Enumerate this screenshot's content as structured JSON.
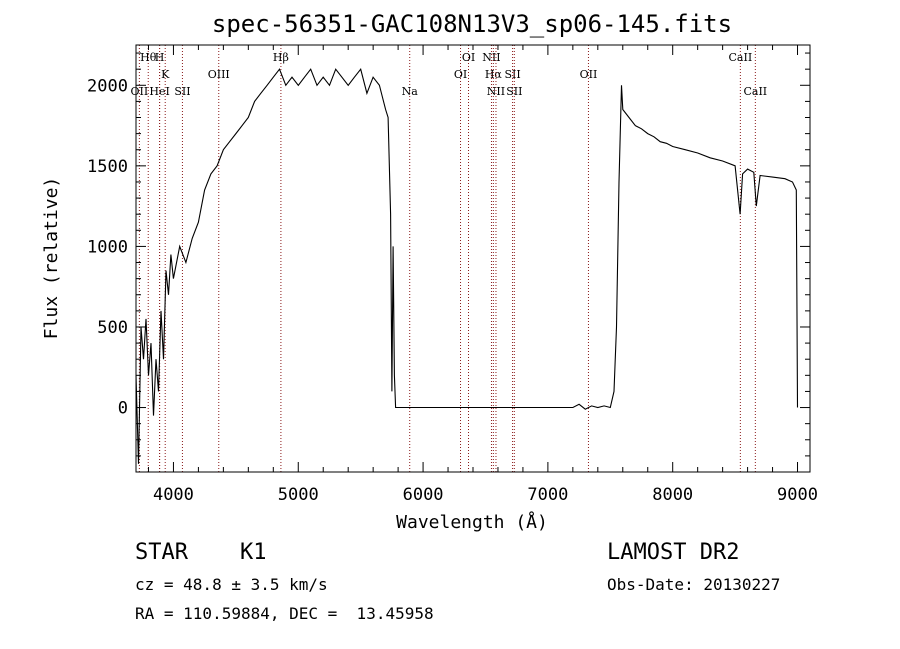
{
  "chart_data": {
    "type": "line",
    "title": "spec-56351-GAC108N13V3_sp06-145.fits",
    "xlabel": "Wavelength (Å)",
    "ylabel": "Flux (relative)",
    "xlim": [
      3700,
      9100
    ],
    "ylim": [
      -400,
      2250
    ],
    "xticks": [
      4000,
      5000,
      6000,
      7000,
      8000,
      9000
    ],
    "yticks": [
      0,
      500,
      1000,
      1500,
      2000
    ],
    "grid": false,
    "legend": "none",
    "series": [
      {
        "x": [
          3700,
          3720,
          3740,
          3760,
          3780,
          3800,
          3820,
          3840,
          3860,
          3880,
          3900,
          3920,
          3940,
          3960,
          3980,
          4000,
          4050,
          4100,
          4150,
          4200,
          4250,
          4300,
          4350,
          4400,
          4450,
          4500,
          4550,
          4600,
          4650,
          4700,
          4750,
          4800,
          4850,
          4900,
          4950,
          5000,
          5050,
          5100,
          5150,
          5200,
          5250,
          5300,
          5350,
          5400,
          5450,
          5500,
          5550,
          5600,
          5650,
          5700,
          5720,
          5740,
          5750,
          5760,
          5770,
          5780,
          5800,
          6000,
          6200,
          6400,
          6600,
          6800,
          7000,
          7200,
          7250,
          7300,
          7350,
          7400,
          7450,
          7500,
          7530,
          7550,
          7570,
          7590,
          7600,
          7650,
          7700,
          7750,
          7800,
          7850,
          7900,
          7950,
          8000,
          8100,
          8200,
          8300,
          8400,
          8500,
          8540,
          8560,
          8600,
          8650,
          8670,
          8700,
          8800,
          8900,
          8960,
          8990,
          9000
        ],
        "y": [
          200,
          -350,
          500,
          300,
          550,
          200,
          400,
          -50,
          300,
          100,
          600,
          300,
          850,
          700,
          950,
          800,
          1000,
          900,
          1050,
          1150,
          1350,
          1450,
          1500,
          1600,
          1650,
          1700,
          1750,
          1800,
          1900,
          1950,
          2000,
          2050,
          2100,
          2000,
          2050,
          2000,
          2050,
          2100,
          2000,
          2050,
          2000,
          2100,
          2050,
          2000,
          2050,
          2100,
          1950,
          2050,
          2000,
          1850,
          1800,
          1200,
          100,
          1000,
          200,
          0,
          0,
          0,
          0,
          0,
          0,
          0,
          0,
          0,
          20,
          -10,
          10,
          0,
          10,
          0,
          100,
          500,
          1400,
          2000,
          1850,
          1800,
          1750,
          1730,
          1700,
          1680,
          1650,
          1640,
          1620,
          1600,
          1580,
          1550,
          1530,
          1500,
          1200,
          1450,
          1480,
          1460,
          1250,
          1440,
          1430,
          1420,
          1400,
          1350,
          0
        ]
      }
    ],
    "line_markers": [
      {
        "label": "Hθ",
        "x": 3798,
        "row": 1
      },
      {
        "label": "H",
        "x": 3889,
        "row": 1
      },
      {
        "label": "OII",
        "x": 3727,
        "row": 3
      },
      {
        "label": "HeI",
        "x": 3889,
        "row": 3
      },
      {
        "label": "K",
        "x": 3934,
        "row": 2
      },
      {
        "label": "SII",
        "x": 4072,
        "row": 3
      },
      {
        "label": "OIII",
        "x": 4363,
        "row": 2
      },
      {
        "label": "Hβ",
        "x": 4861,
        "row": 1
      },
      {
        "label": "Na",
        "x": 5893,
        "row": 3
      },
      {
        "label": "OI",
        "x": 6300,
        "row": 2
      },
      {
        "label": "OI",
        "x": 6364,
        "row": 1
      },
      {
        "label": "NII",
        "x": 6548,
        "row": 1
      },
      {
        "label": "Hα",
        "x": 6563,
        "row": 2
      },
      {
        "label": "NII",
        "x": 6584,
        "row": 3
      },
      {
        "label": "SII",
        "x": 6717,
        "row": 2
      },
      {
        "label": "SII",
        "x": 6731,
        "row": 3
      },
      {
        "label": "OII",
        "x": 7325,
        "row": 2
      },
      {
        "label": "CaII",
        "x": 8542,
        "row": 1
      },
      {
        "label": "CaII",
        "x": 8662,
        "row": 3
      }
    ],
    "colors": {
      "spectrum": "#000000",
      "marker_line": "#8b1a1a"
    }
  },
  "info": {
    "class_label": "STAR",
    "subclass": "K1",
    "cz": "cz = 48.8 ± 3.5 km/s",
    "ra_dec": "RA = 110.59884, DEC =  13.45958",
    "survey": "LAMOST DR2",
    "obs_date": "Obs-Date: 20130227"
  }
}
